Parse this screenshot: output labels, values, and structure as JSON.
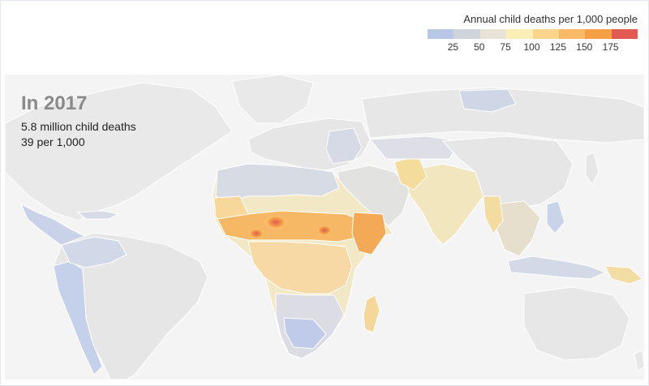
{
  "legend": {
    "title": "Annual child deaths per 1,000 people",
    "ticks": [
      "25",
      "50",
      "75",
      "100",
      "125",
      "150",
      "175"
    ],
    "colors": [
      "#b9c7e6",
      "#cfd3da",
      "#e8e3d6",
      "#fbefb7",
      "#fbd58b",
      "#f9ba68",
      "#f5a045",
      "#e25a52"
    ]
  },
  "overlay": {
    "year": "In 2017",
    "stat1": "5.8 million child deaths",
    "stat2": "39 per 1,000"
  },
  "map": {
    "land_color": "#e7e7e7",
    "ocean_color": "#f4f4f4",
    "border_color": "#ffffff"
  }
}
